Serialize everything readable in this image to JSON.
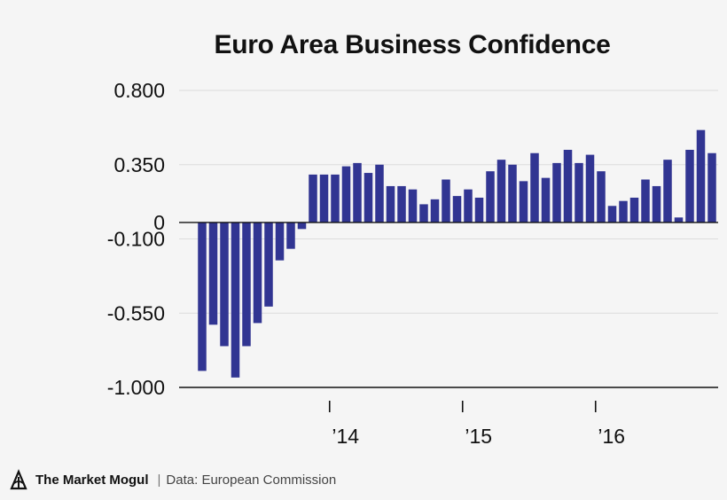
{
  "chart_data": {
    "type": "bar",
    "title": "Euro Area Business Confidence",
    "xlabel": "",
    "ylabel": "",
    "ylim": [
      -1.0,
      0.8
    ],
    "y_ticks": [
      "0.800",
      "0.350",
      "0",
      "-0.100",
      "-0.550",
      "-1.000"
    ],
    "x_ticks": [
      "’14",
      "’15",
      "’16"
    ],
    "bar_color": "#313592",
    "grid": true,
    "start_period": "2013-01",
    "values": [
      -0.9,
      -0.62,
      -0.75,
      -0.94,
      -0.75,
      -0.61,
      -0.51,
      -0.23,
      -0.16,
      -0.04,
      0.29,
      0.29,
      0.29,
      0.34,
      0.36,
      0.3,
      0.35,
      0.22,
      0.22,
      0.2,
      0.11,
      0.14,
      0.26,
      0.16,
      0.2,
      0.15,
      0.31,
      0.38,
      0.35,
      0.25,
      0.42,
      0.27,
      0.36,
      0.44,
      0.36,
      0.41,
      0.31,
      0.1,
      0.13,
      0.15,
      0.26,
      0.22,
      0.38,
      0.03,
      0.44,
      0.56,
      0.42
    ]
  },
  "footer": {
    "brand": "The Market Mogul",
    "separator": "|",
    "source": "Data: European Commission"
  }
}
